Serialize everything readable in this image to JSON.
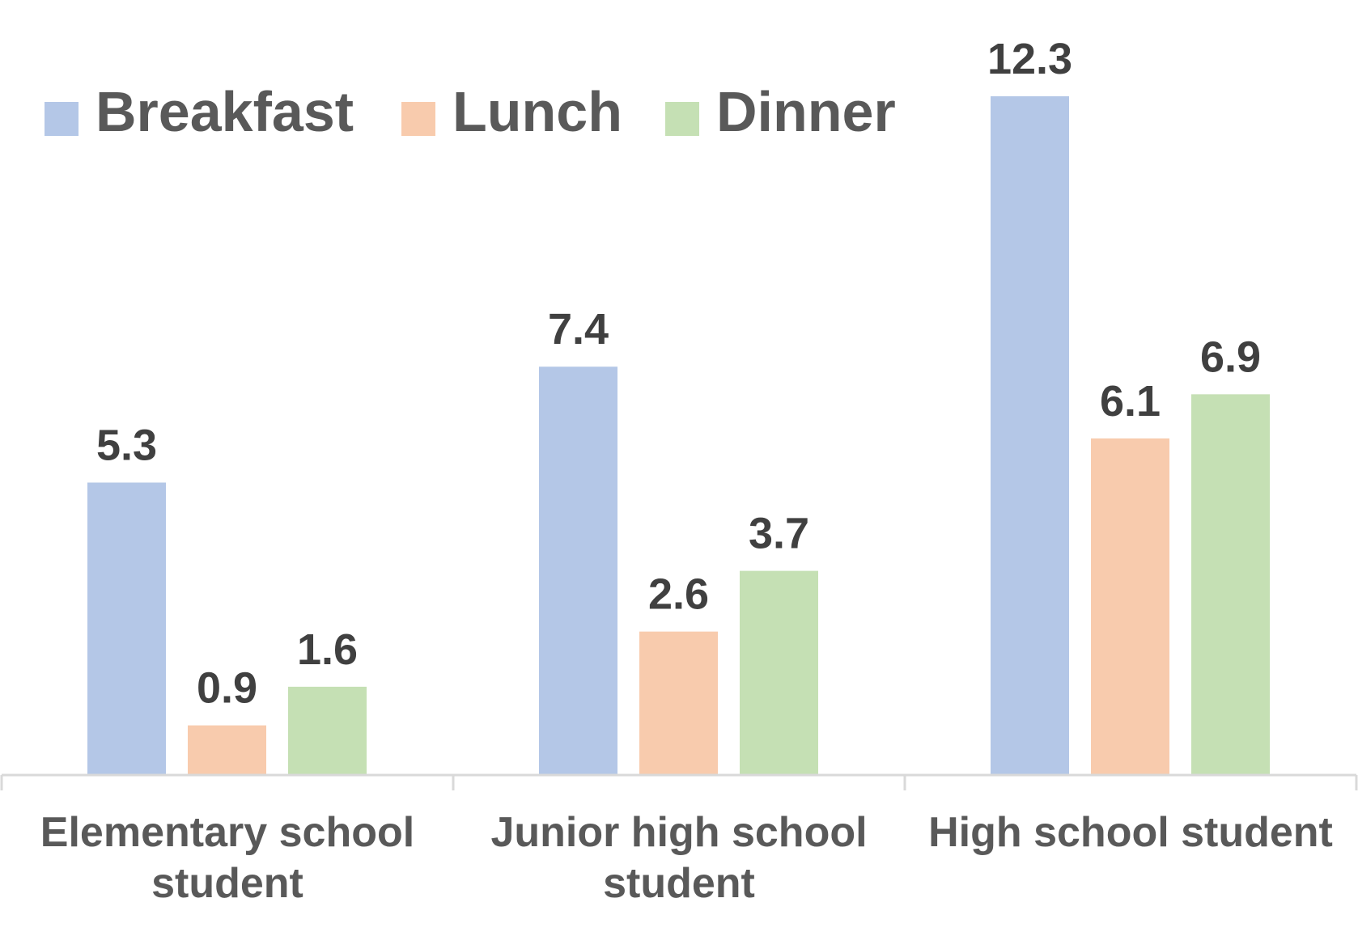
{
  "chart_data": {
    "type": "bar",
    "categories": [
      [
        "Elementary school",
        "student"
      ],
      [
        "Junior high school",
        "student"
      ],
      [
        "High school student"
      ]
    ],
    "series": [
      {
        "name": "Breakfast",
        "values": [
          5.3,
          7.4,
          12.3
        ],
        "color": "#b4c7e7"
      },
      {
        "name": "Lunch",
        "values": [
          0.9,
          2.6,
          6.1
        ],
        "color": "#f8cbad"
      },
      {
        "name": "Dinner",
        "values": [
          1.6,
          3.7,
          6.9
        ],
        "color": "#c5e0b4"
      }
    ],
    "ylim": [
      0,
      12.3
    ],
    "legend_position": "top-left",
    "grid": false,
    "axis_color": "#d9d9d9"
  }
}
